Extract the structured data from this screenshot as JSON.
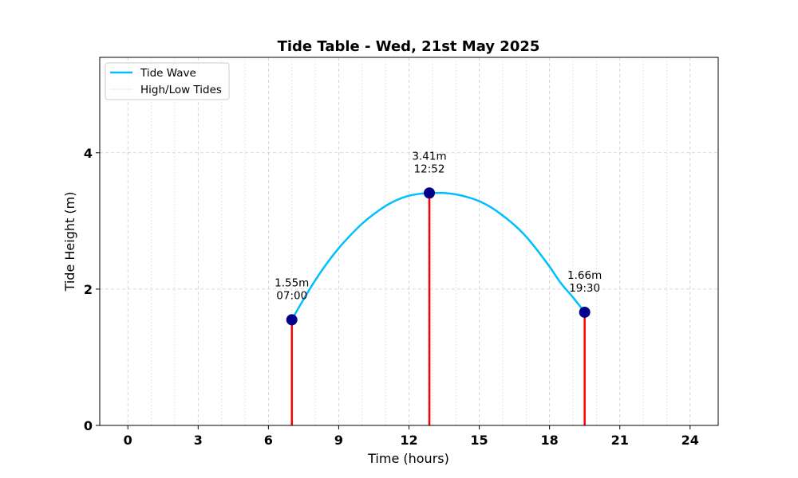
{
  "chart_data": {
    "type": "line",
    "title": "Tide Table - Wed, 21st May 2025",
    "xlabel": "Time (hours)",
    "ylabel": "Tide Height (m)",
    "xlim": [
      -1.2,
      25.2
    ],
    "ylim": [
      0,
      5.4
    ],
    "xticks": [
      0,
      3,
      6,
      9,
      12,
      15,
      18,
      21,
      24
    ],
    "yticks": [
      0,
      2,
      4
    ],
    "grid": true,
    "legend_position": "top-left",
    "colors": {
      "wave": "#00bfff",
      "stem": "#ff0000",
      "marker": "#00008b",
      "grid": "#cccccc"
    },
    "series": [
      {
        "name": "Tide Wave",
        "kind": "curve",
        "x": [
          7.0,
          7.5,
          8.0,
          8.5,
          9.0,
          9.5,
          10.0,
          10.5,
          11.0,
          11.5,
          12.0,
          12.5,
          12.87,
          13.0,
          13.25,
          13.5,
          14.0,
          14.5,
          15.0,
          15.5,
          16.0,
          16.5,
          17.0,
          17.5,
          18.0,
          18.5,
          19.0,
          19.5
        ],
        "y": [
          1.55,
          1.85,
          2.13,
          2.38,
          2.6,
          2.79,
          2.96,
          3.1,
          3.22,
          3.31,
          3.37,
          3.4,
          3.41,
          3.41,
          3.41,
          3.41,
          3.39,
          3.35,
          3.29,
          3.2,
          3.08,
          2.94,
          2.77,
          2.56,
          2.33,
          2.08,
          1.88,
          1.66
        ]
      },
      {
        "name": "High/Low Tides",
        "kind": "stems",
        "points": [
          {
            "x": 7.0,
            "y": 1.55,
            "height_label": "1.55m",
            "time_label": "07:00"
          },
          {
            "x": 12.87,
            "y": 3.41,
            "height_label": "3.41m",
            "time_label": "12:52"
          },
          {
            "x": 19.5,
            "y": 1.66,
            "height_label": "1.66m",
            "time_label": "19:30"
          }
        ]
      }
    ]
  }
}
